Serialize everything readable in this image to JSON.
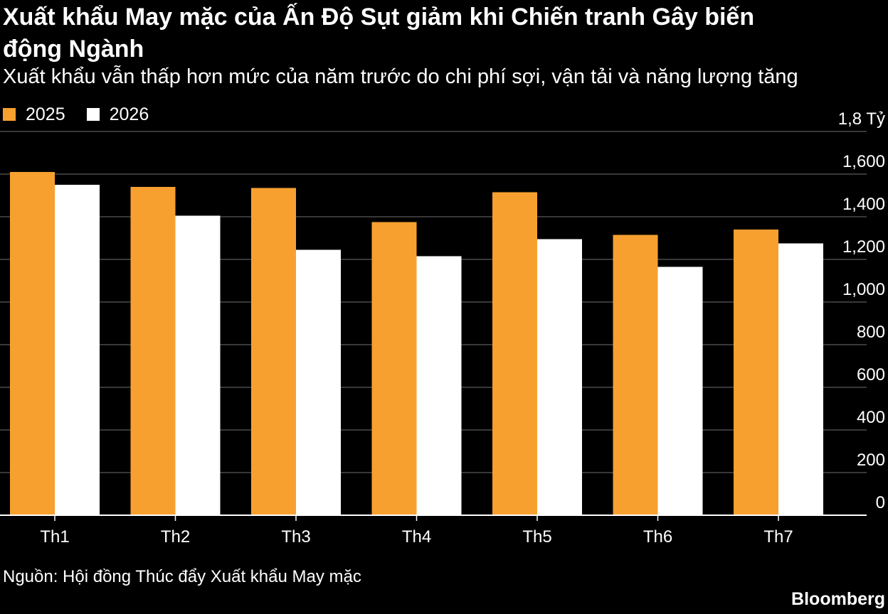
{
  "title": "Xuất khẩu May mặc của Ấn Độ Sụt giảm khi Chiến tranh Gây biến động Ngành",
  "subtitle": "Xuất khẩu vẫn thấp hơn mức của năm trước do chi phí sợi, vận tải và năng lượng tăng",
  "source": "Nguồn: Hội đồng Thúc đẩy Xuất khẩu May mặc",
  "brand": "Bloomberg",
  "colors": {
    "background": "#000000",
    "series_2025": "#f7a030",
    "series_2026": "#ffffff",
    "gridline": "#4a4a4a",
    "text": "#ffffff"
  },
  "chart_data": {
    "type": "bar",
    "categories": [
      "Th1",
      "Th2",
      "Th3",
      "Th4",
      "Th5",
      "Th6",
      "Th7"
    ],
    "series": [
      {
        "name": "2025",
        "color": "#f7a030",
        "values": [
          1610,
          1540,
          1535,
          1375,
          1515,
          1315,
          1340
        ]
      },
      {
        "name": "2026",
        "color": "#ffffff",
        "values": [
          1550,
          1405,
          1245,
          1215,
          1295,
          1165,
          1275
        ]
      }
    ],
    "ylim": [
      0,
      1800
    ],
    "yticks": [
      {
        "value": 1800,
        "label": "1,8 Tỷ"
      },
      {
        "value": 1600,
        "label": "1,600"
      },
      {
        "value": 1400,
        "label": "1,400"
      },
      {
        "value": 1200,
        "label": "1,200"
      },
      {
        "value": 1000,
        "label": "1,000"
      },
      {
        "value": 800,
        "label": "800"
      },
      {
        "value": 600,
        "label": "600"
      },
      {
        "value": 400,
        "label": "400"
      },
      {
        "value": 200,
        "label": "200"
      },
      {
        "value": 0,
        "label": "0"
      }
    ],
    "grid": true,
    "legend_position": "top-left"
  }
}
